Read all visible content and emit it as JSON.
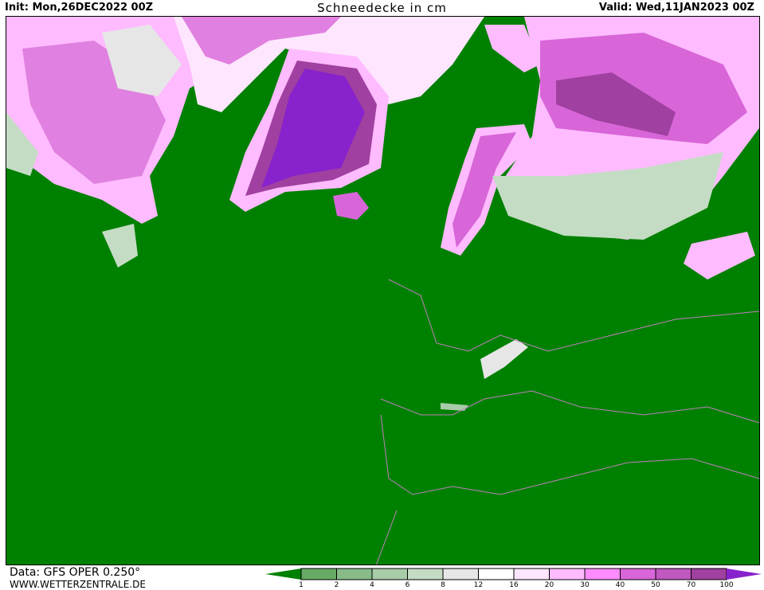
{
  "header": {
    "init": "Init: Mon,26DEC2022 00Z",
    "title": "Schneedecke in cm",
    "valid": "Valid: Wed,11JAN2023 00Z"
  },
  "footer": {
    "source": "Data: GFS OPER 0.250°",
    "website": "WWW.WETTERZENTRALE.DE"
  },
  "legend": {
    "ticks": [
      "1",
      "2",
      "4",
      "6",
      "8",
      "12",
      "16",
      "20",
      "30",
      "40",
      "50",
      "70",
      "100"
    ],
    "below_color": "#008000",
    "above_color": "#8822cc",
    "colors": [
      "#66aa66",
      "#88bb88",
      "#a8cca8",
      "#c4dcc4",
      "#e6e6e6",
      "#ffffff",
      "#ffe6ff",
      "#ffbbff",
      "#ff8cff",
      "#d866d8",
      "#c058c0",
      "#a040a0"
    ]
  },
  "map": {
    "background_color": "#008000",
    "border_color": "#c080c0"
  }
}
